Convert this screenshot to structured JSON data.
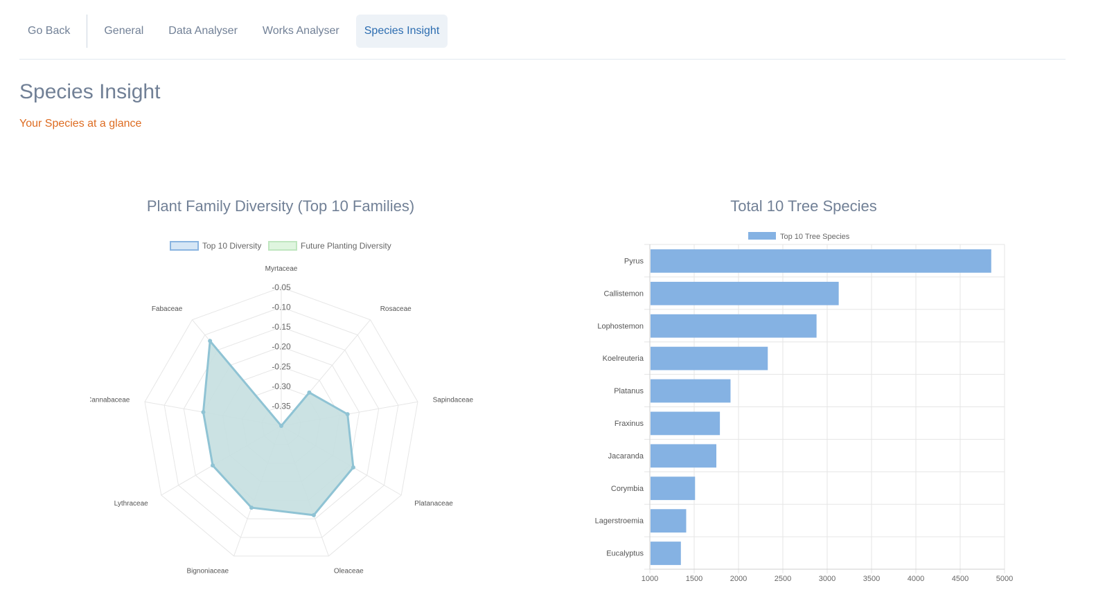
{
  "nav": {
    "back_label": "Go Back",
    "tabs": [
      {
        "label": "General"
      },
      {
        "label": "Data Analyser"
      },
      {
        "label": "Works Analyser"
      },
      {
        "label": "Species Insight",
        "active": true
      }
    ]
  },
  "page": {
    "title": "Species Insight",
    "subtitle": "Your Species at a glance"
  },
  "colors": {
    "accent": "#2b6cb0",
    "subtitle": "#dd6b20",
    "radar_fill": "#c5dfe0",
    "radar_line": "#8fc3d4",
    "bar_fill": "#85b2e3"
  },
  "chart_data": [
    {
      "type": "radar",
      "title": "Plant Family Diversity (Top 10 Families)",
      "legend": [
        "Top 10 Diversity",
        "Future Planting Diversity"
      ],
      "legend_position": "top",
      "categories": [
        "Myrtaceae",
        "Rosaceae",
        "Sapindaceae",
        "Platanaceae",
        "Oleaceae",
        "Bignoniaceae",
        "Lythraceae",
        "Cannabaceae",
        "Fabaceae"
      ],
      "ticks": [
        "-0.05",
        "-0.10",
        "-0.15",
        "-0.20",
        "-0.25",
        "-0.30",
        "-0.35"
      ],
      "range": [
        -0.4,
        -0.05
      ],
      "series": [
        {
          "name": "Top 10 Diversity",
          "values": [
            -0.4,
            -0.29,
            -0.23,
            -0.19,
            -0.16,
            -0.18,
            -0.2,
            -0.2,
            -0.12
          ]
        },
        {
          "name": "Future Planting Diversity",
          "values": [
            -0.4,
            -0.4,
            -0.4,
            -0.4,
            -0.4,
            -0.4,
            -0.4,
            -0.4,
            -0.4
          ]
        }
      ]
    },
    {
      "type": "bar",
      "orientation": "horizontal",
      "title": "Total 10 Tree Species",
      "legend": [
        "Top 10 Tree Species"
      ],
      "legend_position": "top",
      "categories": [
        "Pyrus",
        "Callistemon",
        "Lophostemon",
        "Koelreuteria",
        "Platanus",
        "Fraxinus",
        "Jacaranda",
        "Corymbia",
        "Lagerstroemia",
        "Eucalyptus"
      ],
      "values": [
        4850,
        3130,
        2880,
        2330,
        1910,
        1790,
        1750,
        1510,
        1410,
        1350
      ],
      "xlim": [
        1000,
        5000
      ],
      "xticks": [
        "1000",
        "1500",
        "2000",
        "2500",
        "3000",
        "3500",
        "4000",
        "4500",
        "5000"
      ],
      "grid": true
    }
  ]
}
